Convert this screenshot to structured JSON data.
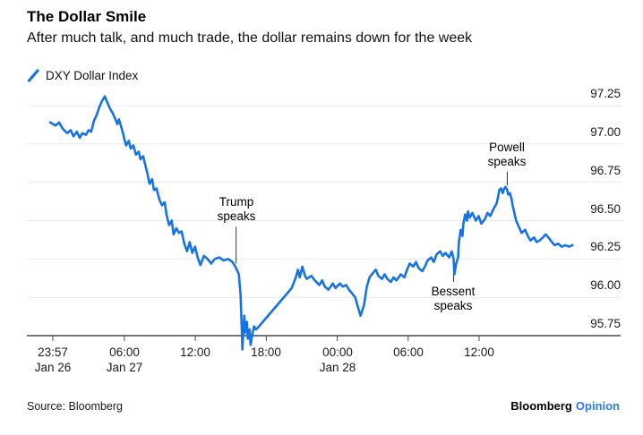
{
  "header": {
    "title": "The Dollar Smile",
    "subtitle": "After much talk, and much trade, the dollar remains down for the week"
  },
  "legend": {
    "series_label": "DXY Dollar Index"
  },
  "footer": {
    "source": "Source: Bloomberg",
    "brand": "Bloomberg",
    "brand_suffix": "Opinion"
  },
  "colors": {
    "line": "#1673e6",
    "opinion_blue": "#2f78f6",
    "gridline": "#e8e8e8",
    "axis": "#4a4a4a",
    "pointer": "#333333",
    "text": "#1a1a1a"
  },
  "chart_data": {
    "type": "line",
    "title": "The Dollar Smile",
    "subtitle": "After much talk, and much trade, the dollar remains down for the week",
    "legend_position": "top-left",
    "grid": "horizontal",
    "y_axis": {
      "side": "right",
      "ticks": [
        95.75,
        96.0,
        96.25,
        96.5,
        96.75,
        97.0,
        97.25
      ],
      "range": [
        95.6,
        97.4
      ]
    },
    "x_axis": {
      "unit": "hours since 23:57 Jan 26",
      "ticks": [
        {
          "t": 0.0,
          "time": "23:57",
          "date": "Jan 26"
        },
        {
          "t": 6.05,
          "time": "06:00",
          "date": "Jan 27"
        },
        {
          "t": 12.05,
          "time": "12:00"
        },
        {
          "t": 18.05,
          "time": "18:00"
        },
        {
          "t": 24.05,
          "time": "00:00",
          "date": "Jan 28"
        },
        {
          "t": 30.05,
          "time": "06:00"
        },
        {
          "t": 36.05,
          "time": "12:00"
        }
      ]
    },
    "annotations": [
      {
        "lines": [
          "Trump",
          "speaks"
        ],
        "t": 15.5,
        "pointer_from_v": 96.46,
        "pointer_to_v": 96.22,
        "text_side": "above"
      },
      {
        "lines": [
          "Bessent",
          "speaks"
        ],
        "t": 33.89,
        "pointer_from_v": 96.21,
        "pointer_to_v": 96.1,
        "text_side": "below"
      },
      {
        "lines": [
          "Powell",
          "speaks"
        ],
        "t": 38.43,
        "pointer_from_v": 96.82,
        "pointer_to_v": 96.73,
        "text_side": "above"
      }
    ],
    "series": [
      {
        "name": "DXY Dollar Index",
        "color": "#1673e6",
        "points": [
          [
            -0.23,
            97.14
          ],
          [
            0.23,
            97.12
          ],
          [
            0.53,
            97.14
          ],
          [
            0.83,
            97.1
          ],
          [
            1.21,
            97.07
          ],
          [
            1.51,
            97.09
          ],
          [
            1.74,
            97.05
          ],
          [
            2.04,
            97.08
          ],
          [
            2.27,
            97.04
          ],
          [
            2.5,
            97.07
          ],
          [
            2.8,
            97.06
          ],
          [
            3.03,
            97.09
          ],
          [
            3.25,
            97.08
          ],
          [
            3.48,
            97.15
          ],
          [
            3.71,
            97.19
          ],
          [
            3.93,
            97.24
          ],
          [
            4.16,
            97.28
          ],
          [
            4.39,
            97.31
          ],
          [
            4.61,
            97.27
          ],
          [
            4.84,
            97.23
          ],
          [
            5.07,
            97.2
          ],
          [
            5.3,
            97.16
          ],
          [
            5.45,
            97.13
          ],
          [
            5.6,
            97.16
          ],
          [
            5.75,
            97.12
          ],
          [
            5.9,
            97.08
          ],
          [
            6.05,
            97.03
          ],
          [
            6.2,
            96.99
          ],
          [
            6.43,
            97.02
          ],
          [
            6.58,
            96.97
          ],
          [
            6.81,
            96.99
          ],
          [
            7.03,
            96.93
          ],
          [
            7.26,
            96.95
          ],
          [
            7.41,
            96.9
          ],
          [
            7.64,
            96.92
          ],
          [
            7.79,
            96.87
          ],
          [
            8.02,
            96.8
          ],
          [
            8.17,
            96.74
          ],
          [
            8.4,
            96.77
          ],
          [
            8.55,
            96.7
          ],
          [
            8.77,
            96.71
          ],
          [
            9.0,
            96.64
          ],
          [
            9.23,
            96.6
          ],
          [
            9.46,
            96.62
          ],
          [
            9.61,
            96.54
          ],
          [
            9.83,
            96.47
          ],
          [
            10.06,
            96.5
          ],
          [
            10.21,
            96.41
          ],
          [
            10.44,
            96.45
          ],
          [
            10.67,
            96.42
          ],
          [
            10.89,
            96.43
          ],
          [
            11.12,
            96.35
          ],
          [
            11.35,
            96.3
          ],
          [
            11.57,
            96.36
          ],
          [
            11.8,
            96.29
          ],
          [
            12.03,
            96.33
          ],
          [
            12.25,
            96.26
          ],
          [
            12.48,
            96.21
          ],
          [
            12.78,
            96.27
          ],
          [
            13.09,
            96.25
          ],
          [
            13.39,
            96.22
          ],
          [
            13.69,
            96.25
          ],
          [
            14.07,
            96.26
          ],
          [
            14.45,
            96.24
          ],
          [
            14.82,
            96.25
          ],
          [
            15.2,
            96.23
          ],
          [
            15.5,
            96.19
          ],
          [
            15.73,
            96.15
          ],
          [
            15.88,
            96.01
          ],
          [
            15.96,
            95.84
          ],
          [
            16.03,
            95.66
          ],
          [
            16.11,
            95.78
          ],
          [
            16.19,
            95.88
          ],
          [
            16.26,
            95.77
          ],
          [
            16.41,
            95.84
          ],
          [
            16.49,
            95.73
          ],
          [
            16.64,
            95.79
          ],
          [
            16.72,
            95.69
          ],
          [
            16.87,
            95.76
          ],
          [
            17.02,
            95.81
          ],
          [
            17.17,
            95.79
          ],
          [
            17.32,
            95.8
          ],
          [
            20.2,
            96.06
          ],
          [
            20.55,
            96.13
          ],
          [
            20.73,
            96.18
          ],
          [
            20.88,
            96.13
          ],
          [
            21.1,
            96.2
          ],
          [
            21.33,
            96.14
          ],
          [
            21.48,
            96.12
          ],
          [
            21.86,
            96.14
          ],
          [
            22.16,
            96.11
          ],
          [
            22.54,
            96.08
          ],
          [
            22.77,
            96.11
          ],
          [
            23.0,
            96.07
          ],
          [
            23.3,
            96.05
          ],
          [
            23.68,
            96.09
          ],
          [
            23.9,
            96.06
          ],
          [
            24.28,
            96.09
          ],
          [
            24.51,
            96.07
          ],
          [
            24.81,
            96.08
          ],
          [
            25.04,
            96.05
          ],
          [
            25.26,
            96.03
          ],
          [
            25.57,
            96.0
          ],
          [
            25.79,
            95.94
          ],
          [
            26.02,
            95.88
          ],
          [
            26.32,
            95.95
          ],
          [
            26.55,
            96.07
          ],
          [
            26.78,
            96.13
          ],
          [
            27.08,
            96.16
          ],
          [
            27.31,
            96.18
          ],
          [
            27.53,
            96.14
          ],
          [
            27.84,
            96.12
          ],
          [
            28.06,
            96.15
          ],
          [
            28.29,
            96.12
          ],
          [
            28.59,
            96.1
          ],
          [
            28.82,
            96.13
          ],
          [
            29.05,
            96.11
          ],
          [
            29.43,
            96.15
          ],
          [
            29.73,
            96.13
          ],
          [
            29.95,
            96.18
          ],
          [
            30.18,
            96.22
          ],
          [
            30.48,
            96.2
          ],
          [
            30.71,
            96.23
          ],
          [
            30.94,
            96.19
          ],
          [
            31.24,
            96.17
          ],
          [
            31.47,
            96.2
          ],
          [
            31.69,
            96.24
          ],
          [
            32.0,
            96.26
          ],
          [
            32.22,
            96.23
          ],
          [
            32.45,
            96.28
          ],
          [
            32.75,
            96.3
          ],
          [
            32.98,
            96.27
          ],
          [
            33.21,
            96.29
          ],
          [
            33.51,
            96.26
          ],
          [
            33.74,
            96.3
          ],
          [
            33.89,
            96.25
          ],
          [
            33.96,
            96.15
          ],
          [
            34.11,
            96.22
          ],
          [
            34.27,
            96.26
          ],
          [
            34.34,
            96.36
          ],
          [
            34.49,
            96.44
          ],
          [
            34.64,
            96.4
          ],
          [
            34.72,
            96.48
          ],
          [
            34.87,
            96.54
          ],
          [
            35.02,
            96.5
          ],
          [
            35.1,
            96.56
          ],
          [
            35.25,
            96.52
          ],
          [
            35.48,
            96.55
          ],
          [
            35.78,
            96.5
          ],
          [
            36.01,
            96.53
          ],
          [
            36.23,
            96.48
          ],
          [
            36.54,
            96.51
          ],
          [
            36.76,
            96.55
          ],
          [
            36.99,
            96.53
          ],
          [
            37.29,
            96.58
          ],
          [
            37.52,
            96.61
          ],
          [
            37.67,
            96.66
          ],
          [
            37.75,
            96.7
          ],
          [
            37.9,
            96.71
          ],
          [
            38.05,
            96.68
          ],
          [
            38.12,
            96.7
          ],
          [
            38.28,
            96.72
          ],
          [
            38.43,
            96.7
          ],
          [
            38.5,
            96.67
          ],
          [
            38.65,
            96.68
          ],
          [
            38.8,
            96.64
          ],
          [
            38.88,
            96.6
          ],
          [
            39.03,
            96.55
          ],
          [
            39.18,
            96.5
          ],
          [
            39.41,
            96.46
          ],
          [
            39.64,
            96.42
          ],
          [
            39.94,
            96.44
          ],
          [
            40.17,
            96.4
          ],
          [
            40.39,
            96.37
          ],
          [
            40.7,
            96.39
          ],
          [
            40.92,
            96.36
          ],
          [
            41.15,
            96.37
          ],
          [
            41.45,
            96.39
          ],
          [
            41.68,
            96.41
          ],
          [
            41.91,
            96.39
          ],
          [
            42.21,
            96.36
          ],
          [
            42.44,
            96.34
          ],
          [
            42.74,
            96.35
          ],
          [
            43.04,
            96.33
          ],
          [
            43.34,
            96.34
          ],
          [
            43.65,
            96.33
          ],
          [
            43.95,
            96.34
          ]
        ]
      }
    ]
  }
}
